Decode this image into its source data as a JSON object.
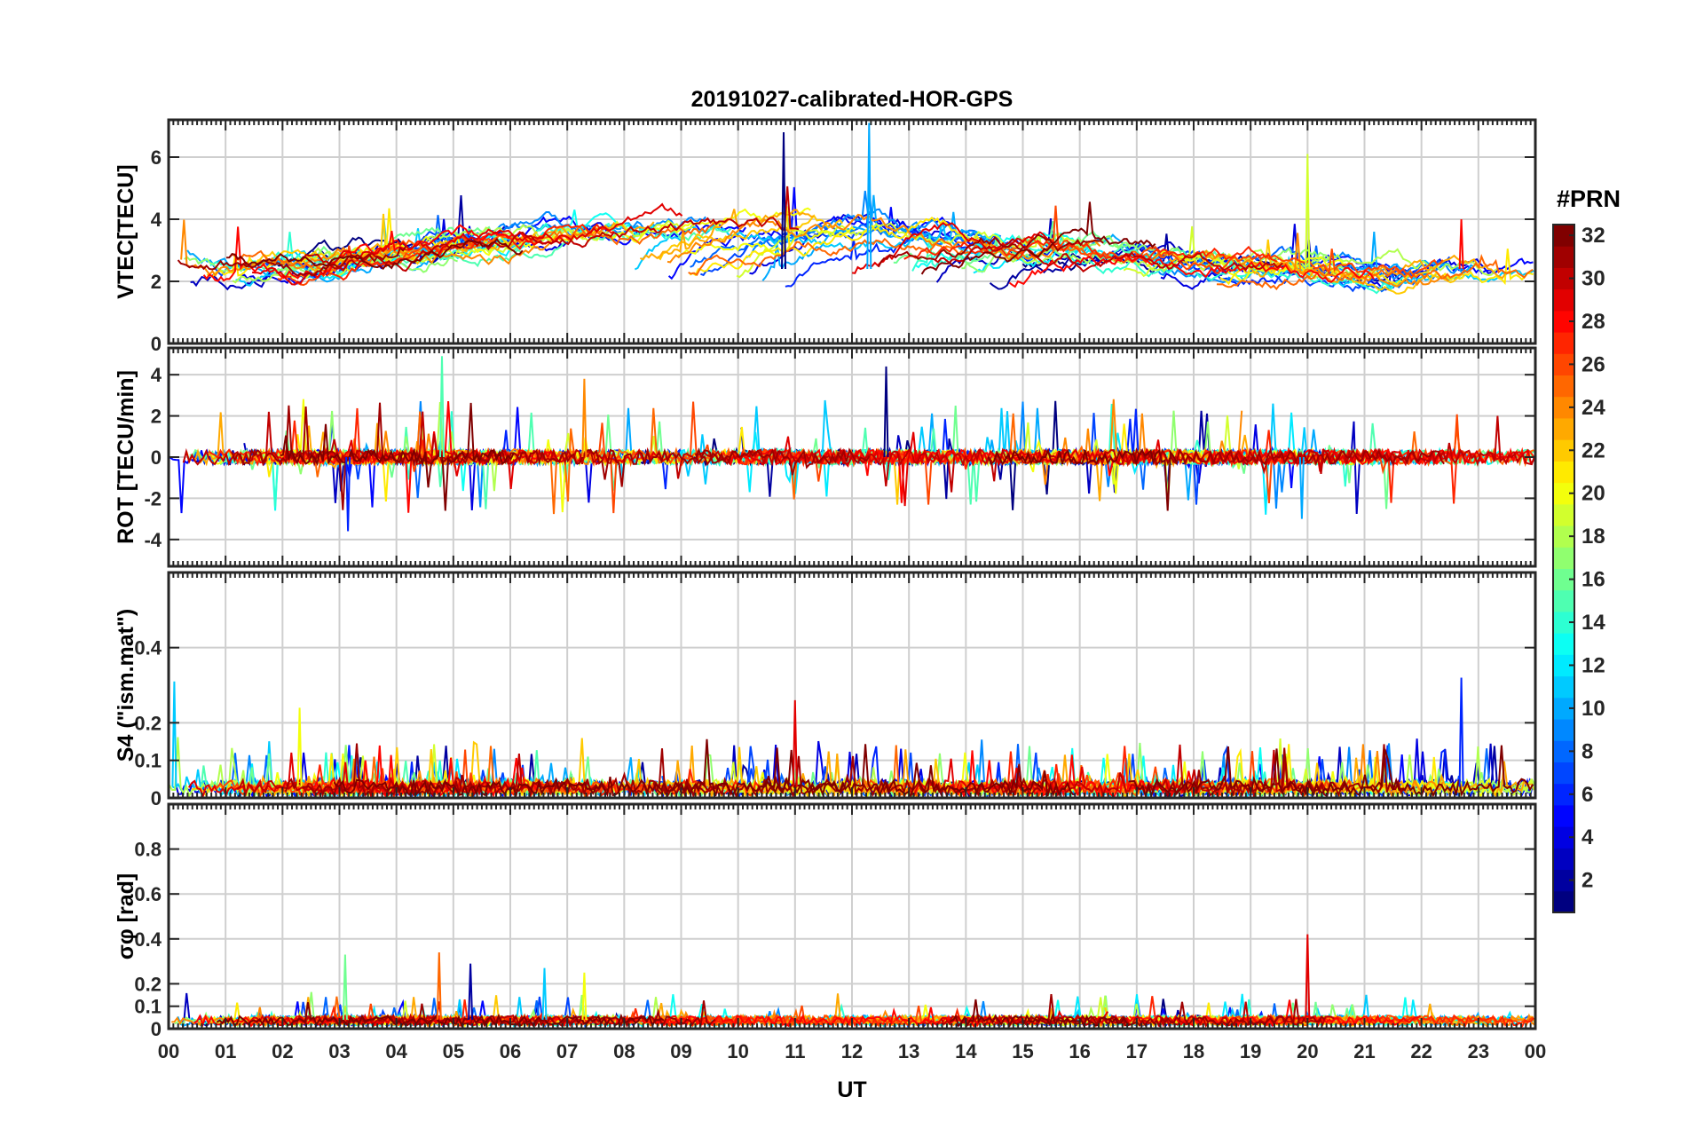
{
  "chart_data": {
    "type": "line",
    "title": "20191027-calibrated-HOR-GPS",
    "xlabel": "UT",
    "x_ticks": [
      "00",
      "01",
      "02",
      "03",
      "04",
      "05",
      "06",
      "07",
      "08",
      "09",
      "10",
      "11",
      "12",
      "13",
      "14",
      "15",
      "16",
      "17",
      "18",
      "19",
      "20",
      "21",
      "22",
      "23",
      "00"
    ],
    "xlim_hours": [
      0,
      24
    ],
    "colorbar": {
      "label": "#PRN",
      "range": [
        1,
        32
      ],
      "ticks": [
        "2",
        "4",
        "6",
        "8",
        "10",
        "12",
        "14",
        "16",
        "18",
        "20",
        "22",
        "24",
        "26",
        "28",
        "30",
        "32"
      ]
    },
    "panels": [
      {
        "id": "vtec",
        "ylabel": "VTEC[TECU]",
        "ylim": [
          0,
          7.2
        ],
        "yticks": [
          0,
          2,
          4,
          6
        ],
        "ytick_labels": [
          "0",
          "2",
          "4",
          "6"
        ],
        "baseline": 2.4,
        "trend": 0.9,
        "noise": 0.55,
        "spikes": 0.01,
        "spike_scale": 1.5,
        "notable": [
          {
            "hour": 10.8,
            "value": 6.8
          },
          {
            "hour": 12.3,
            "value": 7.1
          },
          {
            "hour": 20.0,
            "value": 6.1
          },
          {
            "hour": 22.7,
            "value": 4.0
          }
        ]
      },
      {
        "id": "rot",
        "ylabel": "ROT [TECU/min]",
        "ylim": [
          -5.3,
          5.3
        ],
        "yticks": [
          -4,
          -2,
          0,
          2,
          4
        ],
        "ytick_labels": [
          "-4",
          "-2",
          "0",
          "2",
          "4"
        ],
        "baseline": 0.0,
        "trend": 0.0,
        "noise": 0.35,
        "spikes": 0.03,
        "spike_scale": 2.6,
        "notable": [
          {
            "hour": 3.15,
            "value": -3.6
          },
          {
            "hour": 4.8,
            "value": 4.9
          },
          {
            "hour": 7.3,
            "value": 3.8
          },
          {
            "hour": 12.6,
            "value": 4.4
          },
          {
            "hour": 19.9,
            "value": -3.0
          }
        ]
      },
      {
        "id": "s4",
        "ylabel": "S4 (\"ism.mat\")",
        "ylim": [
          0,
          0.6
        ],
        "yticks": [
          0,
          0.1,
          0.2,
          0.4
        ],
        "ytick_labels": [
          "0",
          "0.1",
          "0.2",
          "0.4"
        ],
        "baseline": 0.03,
        "trend": 0.0,
        "noise": 0.02,
        "spikes": 0.04,
        "spike_scale": 0.12,
        "notable": [
          {
            "hour": 0.1,
            "value": 0.31
          },
          {
            "hour": 2.3,
            "value": 0.24
          },
          {
            "hour": 11.0,
            "value": 0.26
          },
          {
            "hour": 22.7,
            "value": 0.32
          }
        ]
      },
      {
        "id": "sigma_phi",
        "ylabel": "σφ [rad]",
        "ylim": [
          0,
          1.0
        ],
        "yticks": [
          0,
          0.1,
          0.2,
          0.4,
          0.6,
          0.8
        ],
        "ytick_labels": [
          "0",
          "0.1",
          "0.2",
          "0.4",
          "0.6",
          "0.8"
        ],
        "baseline": 0.04,
        "trend": 0.0,
        "noise": 0.008,
        "spikes": 0.015,
        "spike_scale": 0.12,
        "notable": [
          {
            "hour": 3.1,
            "value": 0.33
          },
          {
            "hour": 4.75,
            "value": 0.34
          },
          {
            "hour": 5.3,
            "value": 0.29
          },
          {
            "hour": 6.6,
            "value": 0.27
          },
          {
            "hour": 7.3,
            "value": 0.25
          },
          {
            "hour": 20.0,
            "value": 0.42
          }
        ]
      }
    ],
    "series_count": 32,
    "series_note": "one line per GPS PRN, colored by PRN number (1-32) using the jet colormap"
  }
}
